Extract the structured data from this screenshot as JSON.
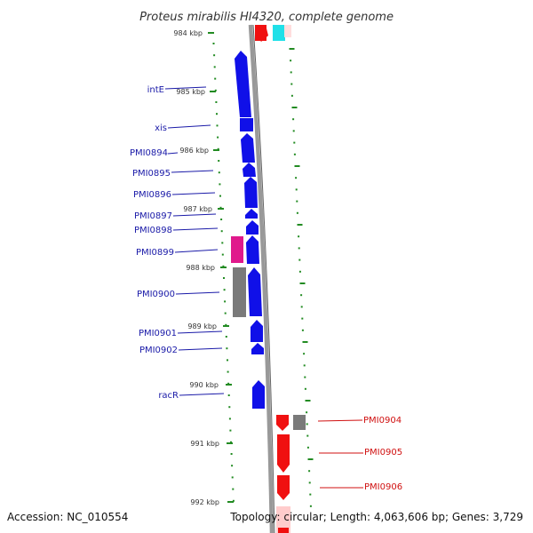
{
  "title": "Proteus mirabilis HI4320, complete genome",
  "accession": "Accession: NC_010554",
  "topology": "Topology: circular; Length: 4,063,606 bp; Genes: 3,729",
  "colors": {
    "background": "#ffffff",
    "backbone": "#999999",
    "ticks": "#228B22",
    "forward_gene": "#1010e8",
    "reverse_gene": "#f01010",
    "forward_label": "#1a1aa8",
    "reverse_label": "#d01010",
    "gray_feature": "#7a7a7a",
    "pink_feature": "#e0198c",
    "cyan_feature": "#20e0e8",
    "pale_feature": "#ffcccc"
  },
  "ticks": [
    "984 kbp",
    "985 kbp",
    "986 kbp",
    "987 kbp",
    "988 kbp",
    "989 kbp",
    "990 kbp",
    "991 kbp",
    "992 kbp"
  ],
  "forward_genes": [
    "intE",
    "xis",
    "PMI0894",
    "PMI0895",
    "PMI0896",
    "PMI0897",
    "PMI0898",
    "PMI0899",
    "PMI0900",
    "PMI0901",
    "PMI0902",
    "racR"
  ],
  "reverse_genes": [
    "PMI0904",
    "PMI0905",
    "PMI0906"
  ]
}
